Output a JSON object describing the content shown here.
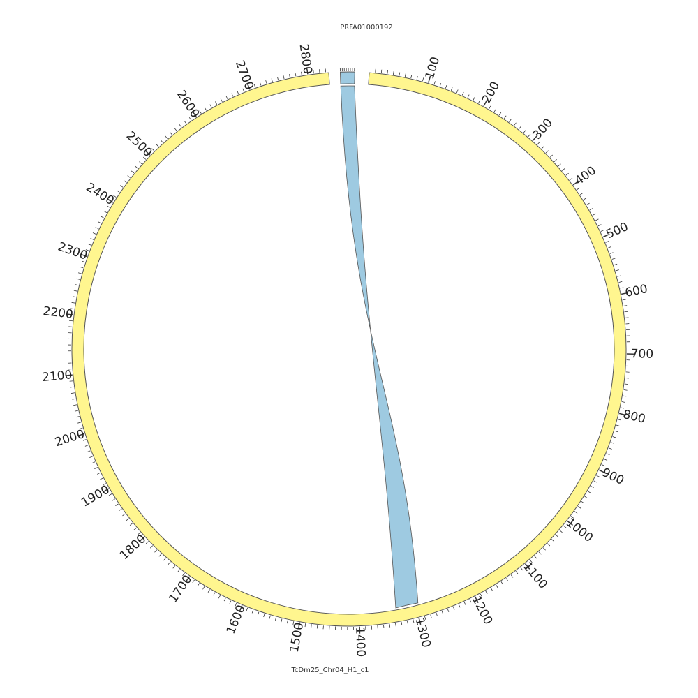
{
  "colors": {
    "main_sequence": "#fff68f",
    "query_sequence": "#9ecae1",
    "ribbon": "#9ecae1",
    "outline": "#555555",
    "text": "#222222"
  },
  "labels": {
    "query_name": "PRFA01000192",
    "main_name": "TcDm25_Chr04_H1_c1"
  },
  "chart_data": {
    "type": "circos",
    "scale_max": 2835,
    "major_tick_step": 100,
    "minor_tick_step": 10,
    "major_tick_labels": [
      "100",
      "200",
      "300",
      "400",
      "500",
      "600",
      "700",
      "800",
      "900",
      "1000",
      "1100",
      "1200",
      "1300",
      "1400",
      "1500",
      "1600",
      "1700",
      "1800",
      "1900",
      "2000",
      "2100",
      "2200",
      "2300",
      "2400",
      "2500",
      "2600",
      "2700",
      "2800"
    ],
    "sequences": [
      {
        "name": "TcDm25_Chr04_H1_c1",
        "start": 0,
        "end": 2835,
        "color": "#fff68f"
      },
      {
        "name": "PRFA01000192",
        "start": 0,
        "end": 36,
        "color": "#9ecae1"
      }
    ],
    "links": [
      {
        "query": "PRFA01000192",
        "query_start": 0,
        "query_end": 36,
        "target": "TcDm25_Chr04_H1_c1",
        "target_start": 1295,
        "target_end": 1335
      }
    ]
  }
}
